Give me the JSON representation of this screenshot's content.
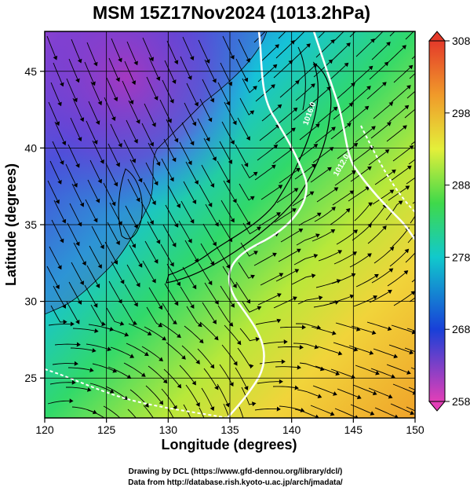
{
  "title": "MSM 15Z17Nov2024 (1013.2hPa)",
  "xlabel": "Longitude (degrees)",
  "ylabel": "Latitude  (degrees)",
  "x_ticks": [
    "120",
    "125",
    "130",
    "135",
    "140",
    "145",
    "150"
  ],
  "y_ticks": [
    "25",
    "30",
    "35",
    "40",
    "45"
  ],
  "colorbar_ticks": [
    "308",
    "298",
    "288",
    "278",
    "268",
    "258"
  ],
  "contour_labels": [
    "1016.0",
    "1012.0"
  ],
  "credits": {
    "line1": "Drawing by DCL (https://www.gfd-dennou.org/library/dcl/)",
    "line2": "Data from http://database.rish.kyoto-u.ac.jp/arch/jmadata/"
  },
  "chart_data": {
    "type": "heatmap",
    "variable": "temperature with streamlines and pressure contours",
    "xlim": [
      120,
      150
    ],
    "ylim": [
      22.4,
      47.6
    ],
    "colorbar_range": [
      258,
      308
    ],
    "colorbar_ticks": [
      308,
      298,
      288,
      278,
      268,
      258
    ],
    "contours": [
      1016.0,
      1012.0
    ],
    "grid": true,
    "colors": {
      "min": "#e23fb7",
      "cold": "#1840d8",
      "cool": "#11c9cc",
      "mid": "#3fd94a",
      "warm": "#e4ef3a",
      "max": "#e43a2a",
      "contour": "#ffffff",
      "streamline": "#000000"
    }
  }
}
